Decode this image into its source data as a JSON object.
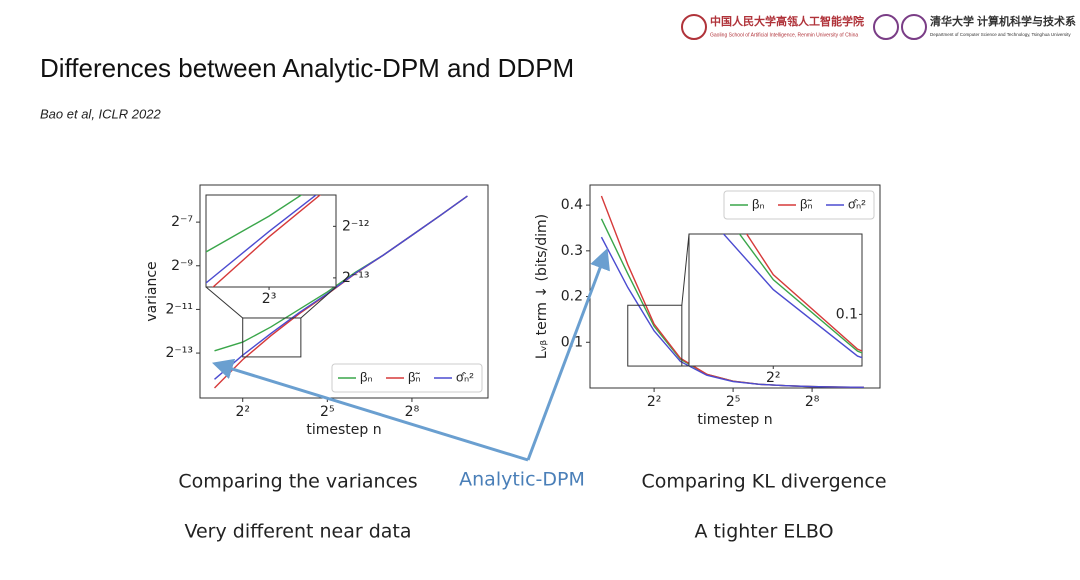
{
  "slide": {
    "title": "Differences between Analytic-DPM and DDPM",
    "citation": "Bao et al, ICLR 2022",
    "logo_left": "中国人民大学高瓴人工智能学院",
    "logo_left_sub": "Gaoling School of Artificial Intelligence, Renmin University of China",
    "logo_right": "清华大学 计算机科学与技术系",
    "logo_right_sub": "Department of Computer Science and Technology, Tsinghua University",
    "caption_left": "Comparing the variances",
    "caption_left_2": "Very different near data",
    "caption_center": "Analytic-DPM",
    "caption_right": "Comparing KL divergence",
    "caption_right_2": "A tighter ELBO"
  },
  "chart_data": [
    {
      "type": "line",
      "xlabel": "timestep n",
      "ylabel": "variance",
      "xscale": "log2",
      "yscale": "log2",
      "xlim": [
        1.4,
        1660
      ],
      "ylim": [
        2.93e-05,
        0.0254
      ],
      "xticks": [
        {
          "value": 4,
          "label": "2²"
        },
        {
          "value": 32,
          "label": "2⁵"
        },
        {
          "value": 256,
          "label": "2⁸"
        }
      ],
      "yticks": [
        {
          "value": 0.0078125,
          "label": "2⁻⁷"
        },
        {
          "value": 0.001953125,
          "label": "2⁻⁹"
        },
        {
          "value": 0.00048828125,
          "label": "2⁻¹¹"
        },
        {
          "value": 0.0001220703125,
          "label": "2⁻¹³"
        }
      ],
      "x": [
        2,
        4,
        8,
        16,
        32,
        64,
        128,
        256,
        512,
        1000
      ],
      "series": [
        {
          "name": "βₙ",
          "color": "#3aa64a",
          "values": [
            0.000131,
            0.000173,
            0.00028,
            0.000488,
            0.00085,
            0.00159,
            0.00276,
            0.00515,
            0.00962,
            0.0179
          ]
        },
        {
          "name": "β̃ₙ",
          "color": "#d63a3a",
          "values": [
            4.03e-05,
            9.91e-05,
            0.000212,
            0.000425,
            0.000793,
            0.00153,
            0.00276,
            0.00515,
            0.00962,
            0.0179
          ]
        },
        {
          "name": "σ̂ₙ²",
          "color": "#4b4bd0",
          "values": [
            5.31e-05,
            0.000114,
            0.000228,
            0.00044,
            0.000804,
            0.00155,
            0.00276,
            0.00515,
            0.00962,
            0.0179
          ]
        }
      ],
      "legend_loc": "lower right",
      "inset": {
        "xlim": [
          4,
          16.7
        ],
        "ylim": [
          0.000108,
          0.000372
        ],
        "xticks": [
          {
            "value": 8,
            "label": "2³"
          }
        ],
        "yticks": [
          {
            "value": 0.000244140625,
            "label": "2⁻¹²"
          },
          {
            "value": 0.0001220703125,
            "label": "2⁻¹³"
          }
        ]
      }
    },
    {
      "type": "line",
      "xlabel": "timestep n",
      "ylabel": "Lᵥᵦ term ↓ (bits/dim)",
      "xscale": "log2",
      "yscale": "linear",
      "xlim": [
        0.74,
        1530
      ],
      "ylim": [
        0,
        0.444
      ],
      "xticks": [
        {
          "value": 4,
          "label": "2²"
        },
        {
          "value": 32,
          "label": "2⁵"
        },
        {
          "value": 256,
          "label": "2⁸"
        }
      ],
      "yticks": [
        0.4,
        0.3,
        0.2,
        0.1
      ],
      "x": [
        1,
        2,
        4,
        8,
        16,
        32,
        64,
        128,
        256,
        512,
        1000
      ],
      "series": [
        {
          "name": "βₙ",
          "color": "#3aa64a",
          "values": [
            0.37,
            0.25,
            0.135,
            0.063,
            0.03,
            0.015,
            0.008,
            0.005,
            0.003,
            0.002,
            0.0015
          ]
        },
        {
          "name": "β̃ₙ",
          "color": "#d63a3a",
          "values": [
            0.42,
            0.27,
            0.14,
            0.065,
            0.03,
            0.015,
            0.008,
            0.005,
            0.003,
            0.002,
            0.0015
          ]
        },
        {
          "name": "σ̂ₙ²",
          "color": "#4b4bd0",
          "values": [
            0.33,
            0.22,
            0.125,
            0.058,
            0.028,
            0.014,
            0.008,
            0.005,
            0.003,
            0.002,
            0.0015
          ]
        }
      ],
      "legend_loc": "upper right",
      "inset": {
        "xlim": [
          2,
          8.3
        ],
        "ylim": [
          0.048,
          0.181
        ],
        "xticks": [
          {
            "value": 4,
            "label": "2²"
          }
        ],
        "yticks": [
          0.1
        ]
      }
    }
  ]
}
